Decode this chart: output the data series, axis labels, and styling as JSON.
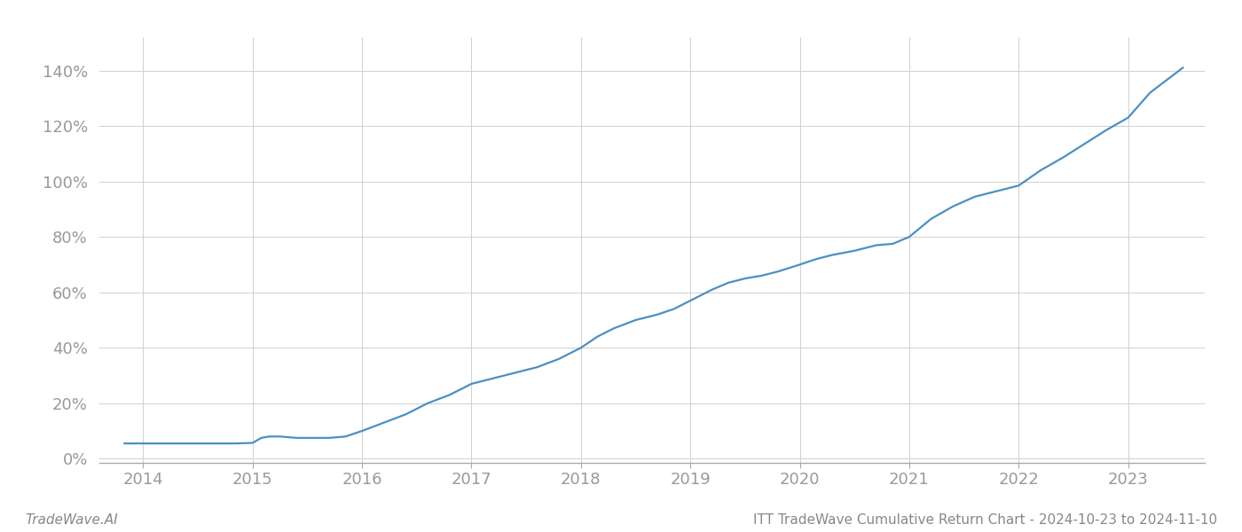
{
  "title_left": "TradeWave.AI",
  "title_right": "ITT TradeWave Cumulative Return Chart - 2024-10-23 to 2024-11-10",
  "line_color": "#4a90c4",
  "background_color": "#ffffff",
  "grid_color": "#d0d0d0",
  "x_values": [
    2013.83,
    2014.0,
    2014.15,
    2014.3,
    2014.5,
    2014.7,
    2014.85,
    2015.0,
    2015.08,
    2015.15,
    2015.25,
    2015.4,
    2015.55,
    2015.7,
    2015.85,
    2016.0,
    2016.2,
    2016.4,
    2016.6,
    2016.8,
    2017.0,
    2017.2,
    2017.4,
    2017.6,
    2017.8,
    2018.0,
    2018.15,
    2018.3,
    2018.5,
    2018.7,
    2018.85,
    2019.0,
    2019.2,
    2019.35,
    2019.5,
    2019.65,
    2019.8,
    2020.0,
    2020.15,
    2020.3,
    2020.5,
    2020.7,
    2020.85,
    2021.0,
    2021.2,
    2021.4,
    2021.6,
    2021.8,
    2022.0,
    2022.2,
    2022.4,
    2022.6,
    2022.8,
    2023.0,
    2023.2,
    2023.4,
    2023.5
  ],
  "y_values": [
    0.055,
    0.055,
    0.055,
    0.055,
    0.055,
    0.055,
    0.055,
    0.057,
    0.075,
    0.08,
    0.08,
    0.075,
    0.075,
    0.075,
    0.08,
    0.1,
    0.13,
    0.16,
    0.2,
    0.23,
    0.27,
    0.29,
    0.31,
    0.33,
    0.36,
    0.4,
    0.44,
    0.47,
    0.5,
    0.52,
    0.54,
    0.57,
    0.61,
    0.635,
    0.65,
    0.66,
    0.675,
    0.7,
    0.72,
    0.735,
    0.75,
    0.77,
    0.775,
    0.8,
    0.865,
    0.91,
    0.945,
    0.965,
    0.985,
    1.04,
    1.085,
    1.135,
    1.185,
    1.23,
    1.32,
    1.38,
    1.41
  ],
  "xlim": [
    2013.6,
    2023.7
  ],
  "ylim": [
    -0.015,
    1.52
  ],
  "xticks": [
    2014,
    2015,
    2016,
    2017,
    2018,
    2019,
    2020,
    2021,
    2022,
    2023
  ],
  "yticks": [
    0.0,
    0.2,
    0.4,
    0.6,
    0.8,
    1.0,
    1.2,
    1.4
  ],
  "ytick_labels": [
    "0%",
    "20%",
    "40%",
    "60%",
    "80%",
    "100%",
    "120%",
    "140%"
  ],
  "line_width": 1.6,
  "tick_color": "#999999",
  "tick_fontsize": 13,
  "footer_fontsize": 11,
  "footer_color": "#888888"
}
